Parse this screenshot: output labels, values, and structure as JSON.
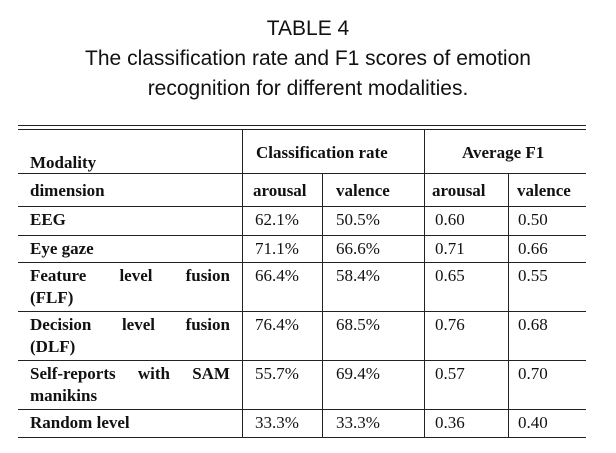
{
  "caption": {
    "label": "TABLE 4",
    "line1": "The classification rate and F1 scores of emotion",
    "line2": "recognition for different modalities."
  },
  "header": {
    "modality": "Modality",
    "dimension": "dimension",
    "classification_rate": "Classification rate",
    "average_f1": "Average F1",
    "arousal": "arousal",
    "valence": "valence"
  },
  "rows": [
    {
      "label_line1": [
        "EEG"
      ],
      "label_line2": "",
      "cr_arousal": "62.1%",
      "cr_valence": "50.5%",
      "f1_arousal": "0.60",
      "f1_valence": "0.50"
    },
    {
      "label_line1": [
        "Eye gaze"
      ],
      "label_line2": "",
      "cr_arousal": "71.1%",
      "cr_valence": "66.6%",
      "f1_arousal": "0.71",
      "f1_valence": "0.66"
    },
    {
      "label_line1": [
        "Feature",
        "level",
        "fusion"
      ],
      "label_line2": "(FLF)",
      "cr_arousal": "66.4%",
      "cr_valence": "58.4%",
      "f1_arousal": "0.65",
      "f1_valence": "0.55"
    },
    {
      "label_line1": [
        "Decision",
        "level",
        "fusion"
      ],
      "label_line2": "(DLF)",
      "cr_arousal": "76.4%",
      "cr_valence": "68.5%",
      "f1_arousal": "0.76",
      "f1_valence": "0.68"
    },
    {
      "label_line1": [
        "Self-reports",
        "with",
        "SAM"
      ],
      "label_line2": "manikins",
      "cr_arousal": "55.7%",
      "cr_valence": "69.4%",
      "f1_arousal": "0.57",
      "f1_valence": "0.70"
    },
    {
      "label_line1": [
        "Random level"
      ],
      "label_line2": "",
      "cr_arousal": "33.3%",
      "cr_valence": "33.3%",
      "f1_arousal": "0.36",
      "f1_valence": "0.40"
    }
  ]
}
